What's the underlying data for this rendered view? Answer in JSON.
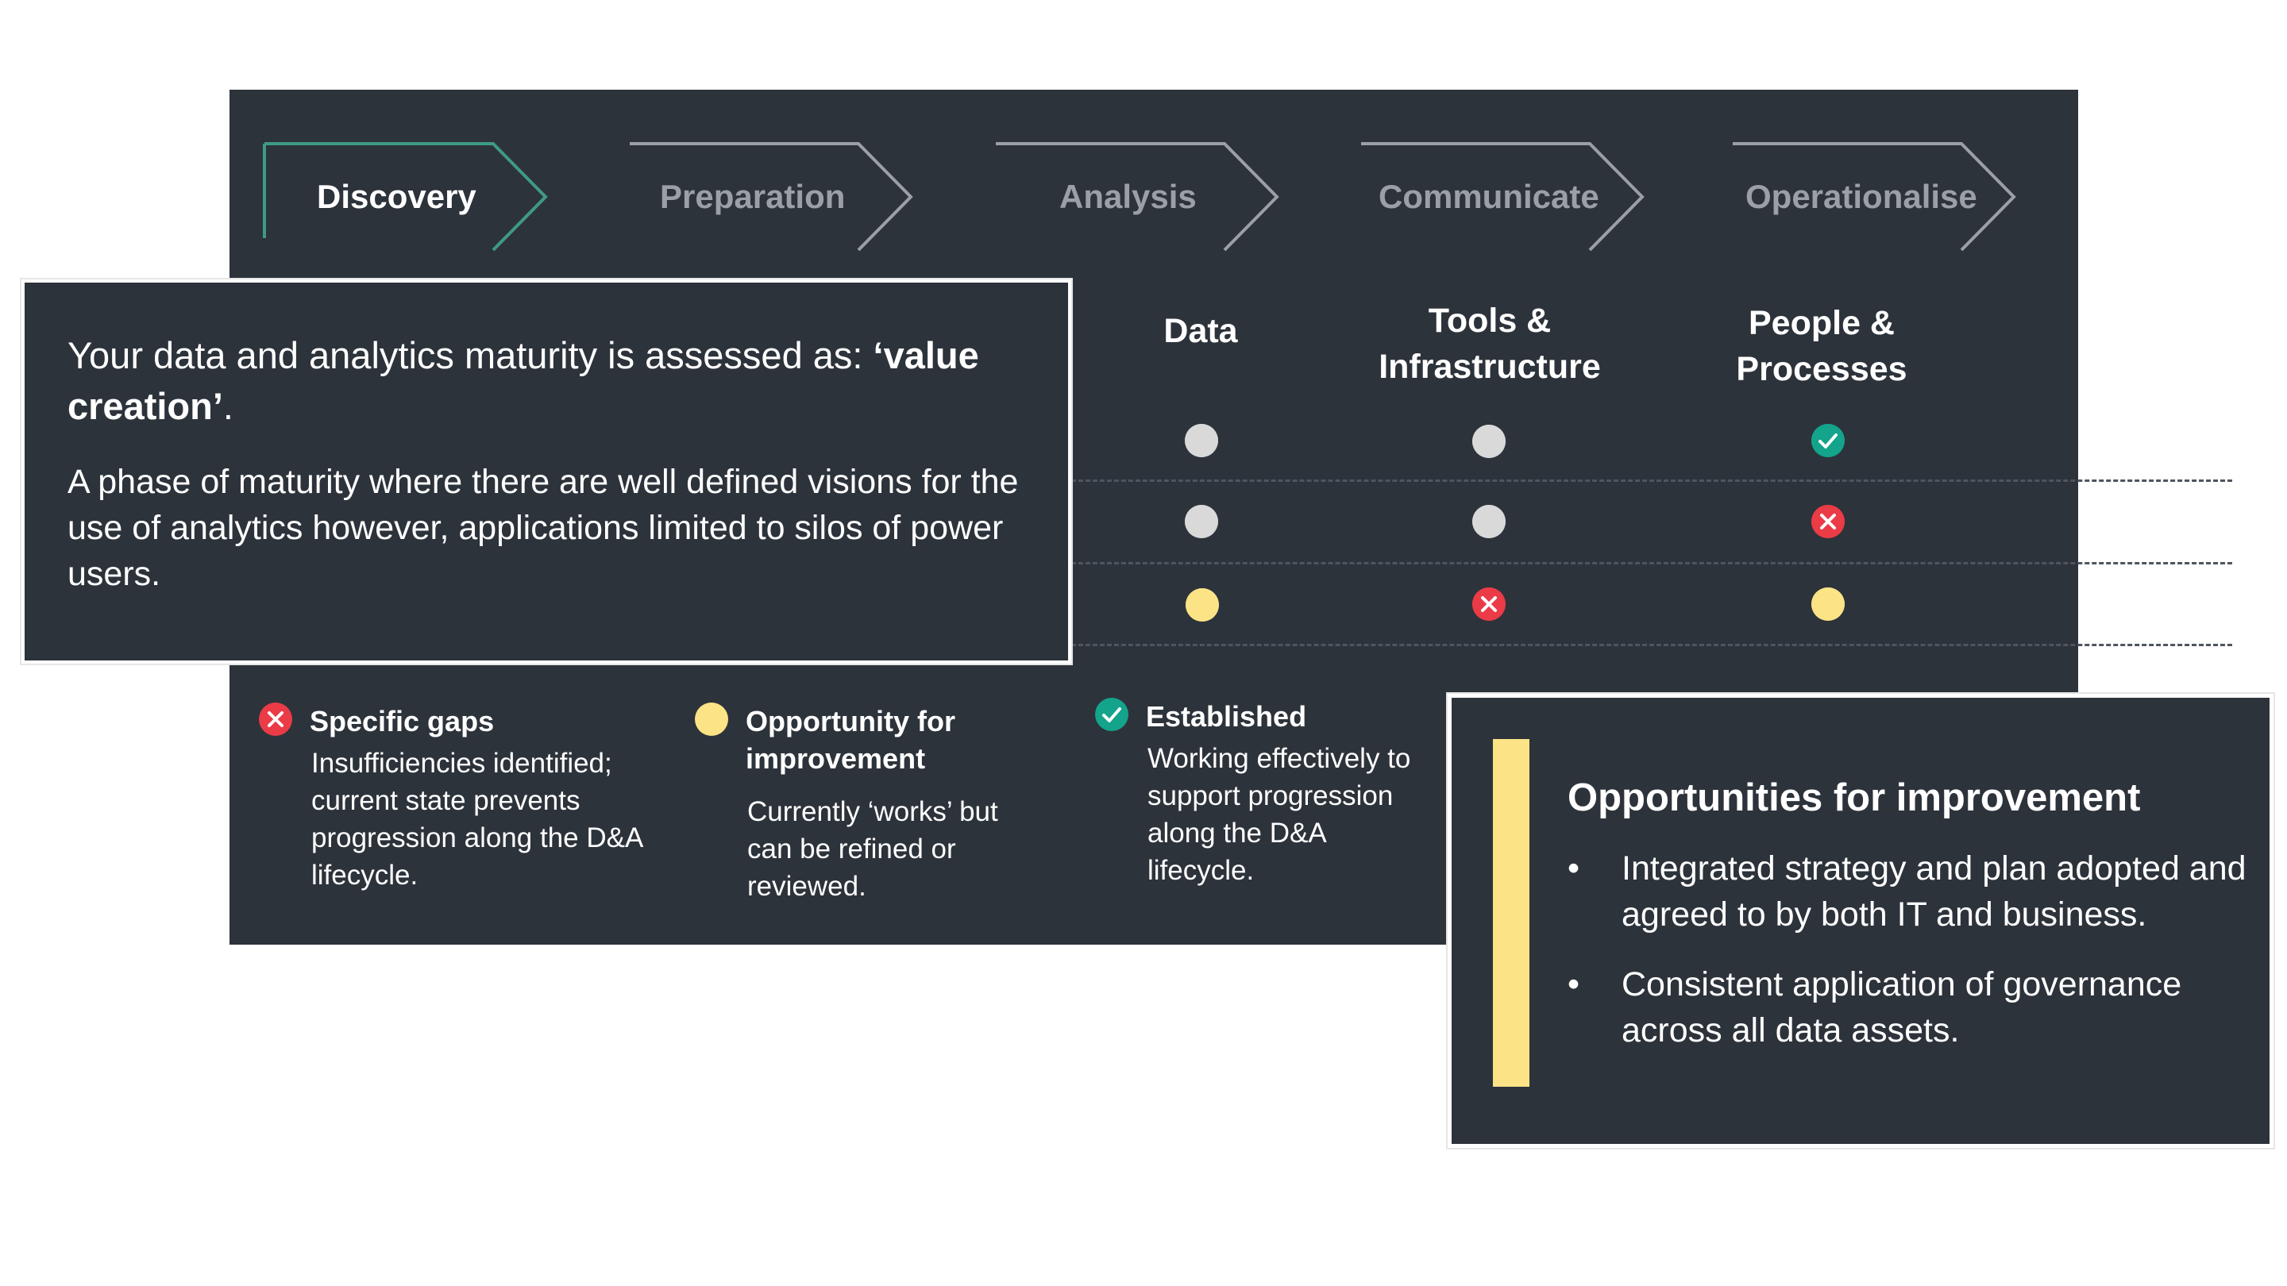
{
  "stages": [
    {
      "label": "Discovery",
      "active": true
    },
    {
      "label": "Preparation",
      "active": false
    },
    {
      "label": "Analysis",
      "active": false
    },
    {
      "label": "Communicate",
      "active": false
    },
    {
      "label": "Operationalise",
      "active": false
    }
  ],
  "columns": [
    {
      "line1": "Data",
      "line2": ""
    },
    {
      "line1": "Tools &",
      "line2": "Infrastructure"
    },
    {
      "line1": "People &",
      "line2": "Processes"
    }
  ],
  "matrix": [
    [
      "grey",
      "grey",
      "green"
    ],
    [
      "grey",
      "grey",
      "red"
    ],
    [
      "yellow",
      "red",
      "yellow"
    ]
  ],
  "legend": [
    {
      "status": "red",
      "title": "Specific gaps",
      "description": "Insufficiencies identified; current state prevents progression along the D&A lifecycle."
    },
    {
      "status": "yellow",
      "title": "Opportunity for improvement",
      "description": "Currently ‘works’ but can be refined or reviewed."
    },
    {
      "status": "green",
      "title": "Established",
      "description": "Working effectively to support progression along the D&A lifecycle."
    }
  ],
  "maturity": {
    "statement_prefix": "Your data and analytics maturity is assessed as: ",
    "statement_value": "‘value creation’",
    "statement_suffix": ".",
    "description": "A phase of maturity where there are well defined visions for the use of analytics however, applications limited to silos of power users."
  },
  "opportunities": {
    "title": "Opportunities for improvement",
    "bullet": "•",
    "items": [
      "Integrated strategy and plan adopted and agreed to by both IT and business.",
      "Consistent application of governance across all data assets."
    ]
  },
  "colors": {
    "panel": "#2d333b",
    "active_stage": "#3f9a84",
    "inactive_stage": "#9aa0a6",
    "grey": "#d9d9d9",
    "yellow": "#fbe386",
    "red": "#ea3b47",
    "green": "#14a38b",
    "divider": "#4e555e"
  },
  "icons": {
    "red": "cross-circle-icon",
    "green": "check-circle-icon",
    "yellow": "yellow-dot-icon",
    "grey": "grey-dot-icon"
  }
}
